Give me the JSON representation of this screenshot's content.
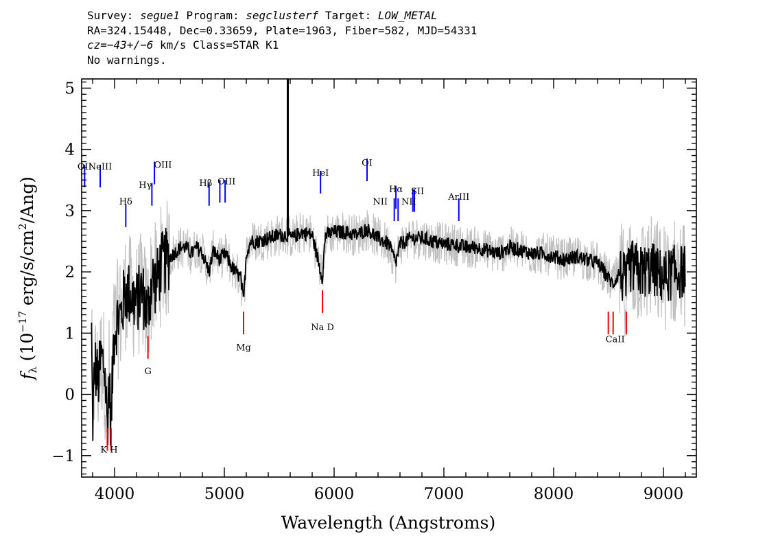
{
  "header": {
    "survey_label": "Survey:",
    "survey": "segue1",
    "program_label": "Program:",
    "program": "segclusterf",
    "target_label": "Target:",
    "target": "LOW_METAL",
    "line2": "RA=324.15448, Dec=0.33659, Plate=1963, Fiber=582, MJD=54331",
    "cz_label": "cz=",
    "cz_value": "−43+/−6",
    "cz_rest": " km/s Class=STAR K1",
    "line4": "No warnings."
  },
  "colors": {
    "flux": "#000000",
    "error": "#c0c0c0",
    "emission": "#0000ff",
    "absorption": "#ff0000"
  },
  "chart_data": {
    "type": "line",
    "xlabel": "Wavelength (Angstroms)",
    "ylabel": "fλ (10⁻¹⁷ erg/s/cm²/Ang)",
    "xlim": [
      3700,
      9300
    ],
    "ylim": [
      -1.35,
      5.15
    ],
    "x_ticks": [
      4000,
      5000,
      6000,
      7000,
      8000,
      9000
    ],
    "y_ticks": [
      -1,
      0,
      1,
      2,
      3,
      4,
      5
    ],
    "x_tick_labels": [
      "4000",
      "5000",
      "6000",
      "7000",
      "8000",
      "9000"
    ],
    "y_tick_labels": [
      "−1",
      "0",
      "1",
      "2",
      "3",
      "4",
      "5"
    ],
    "series": [
      {
        "role": "flux",
        "x": [
          3790,
          3800,
          3820,
          3850,
          3880,
          3910,
          3934,
          3950,
          3968,
          3990,
          4020,
          4060,
          4101,
          4150,
          4200,
          4250,
          4300,
          4340,
          4380,
          4420,
          4480,
          4540,
          4600,
          4650,
          4700,
          4750,
          4800,
          4861,
          4900,
          4960,
          5010,
          5060,
          5100,
          5150,
          5175,
          5200,
          5240,
          5300,
          5400,
          5500,
          5580,
          5620,
          5700,
          5800,
          5893,
          5920,
          6000,
          6100,
          6200,
          6300,
          6400,
          6500,
          6563,
          6600,
          6700,
          6800,
          6900,
          7000,
          7100,
          7200,
          7300,
          7400,
          7500,
          7600,
          7700,
          7800,
          7900,
          8000,
          8100,
          8200,
          8300,
          8400,
          8498,
          8542,
          8600,
          8662,
          8700,
          8800,
          8900,
          9000,
          9100,
          9200
        ],
        "y": [
          1.0,
          -0.5,
          0.5,
          0.2,
          0.6,
          0.4,
          -0.5,
          0.3,
          -0.6,
          0.9,
          1.2,
          1.3,
          1.7,
          1.6,
          1.5,
          1.7,
          1.3,
          1.9,
          1.8,
          2.1,
          2.2,
          2.3,
          2.4,
          2.4,
          2.3,
          2.4,
          2.3,
          2.0,
          2.35,
          2.2,
          2.3,
          2.1,
          2.0,
          1.9,
          1.5,
          2.3,
          2.5,
          2.5,
          2.55,
          2.6,
          2.6,
          2.55,
          2.65,
          2.6,
          1.9,
          2.6,
          2.65,
          2.65,
          2.6,
          2.7,
          2.55,
          2.45,
          2.15,
          2.45,
          2.55,
          2.55,
          2.5,
          2.45,
          2.45,
          2.4,
          2.4,
          2.35,
          2.3,
          2.4,
          2.35,
          2.3,
          2.3,
          2.25,
          2.2,
          2.25,
          2.2,
          2.15,
          1.9,
          1.8,
          2.0,
          1.8,
          2.1,
          2.0,
          2.05,
          1.9,
          2.0,
          2.0
        ]
      }
    ],
    "spike": {
      "x": 5578,
      "y": 5.15
    },
    "emission_lines": [
      {
        "label": "OII",
        "x": 3727,
        "y": 3.75
      },
      {
        "label": "NeIII",
        "x": 3869,
        "y": 3.75
      },
      {
        "label": "Hδ",
        "x": 4102,
        "y": 3.1
      },
      {
        "label": "Hγ",
        "x": 4340,
        "y": 3.45
      },
      {
        "label": "OIII",
        "x": 4363,
        "y": 3.8
      },
      {
        "label": "Hβ",
        "x": 4861,
        "y": 3.45
      },
      {
        "label": "OIII",
        "x": 4959,
        "y": 3.5
      },
      {
        "label": "OIII",
        "x": 5007,
        "y": 3.5
      },
      {
        "label": "HeI",
        "x": 5876,
        "y": 3.65
      },
      {
        "label": "OI",
        "x": 6300,
        "y": 3.85
      },
      {
        "label": "NII",
        "x": 6548,
        "y": 3.2
      },
      {
        "label": "Hα",
        "x": 6563,
        "y": 3.4
      },
      {
        "label": "NII",
        "x": 6583,
        "y": 3.2
      },
      {
        "label": "SII",
        "x": 6717,
        "y": 3.35
      },
      {
        "label": "SII",
        "x": 6731,
        "y": 3.35
      },
      {
        "label": "ArIII",
        "x": 7136,
        "y": 3.2
      }
    ],
    "absorption_lines": [
      {
        "label": "K",
        "x": 3934,
        "y": -0.55
      },
      {
        "label": "H",
        "x": 3968,
        "y": -0.55
      },
      {
        "label": "G",
        "x": 4304,
        "y": 0.95
      },
      {
        "label": "Mg",
        "x": 5175,
        "y": 1.35
      },
      {
        "label": "Na D",
        "x": 5894,
        "y": 1.7
      },
      {
        "label": "CaII",
        "x": 8498,
        "y": 1.35
      },
      {
        "label": "CaII",
        "x": 8542,
        "y": 1.35
      },
      {
        "label": "CaII",
        "x": 8662,
        "y": 1.35
      }
    ],
    "line_labels": [
      {
        "text": "OII",
        "x": 3727,
        "y": 3.67
      },
      {
        "text": "NeIII",
        "x": 3869,
        "y": 3.67
      },
      {
        "text": "Hδ",
        "x": 4102,
        "y": 3.1
      },
      {
        "text": "Hγ",
        "x": 4280,
        "y": 3.37
      },
      {
        "text": "OIII",
        "x": 4440,
        "y": 3.7
      },
      {
        "text": "Hβ",
        "x": 4830,
        "y": 3.4
      },
      {
        "text": "OIII",
        "x": 5020,
        "y": 3.43
      },
      {
        "text": "HeI",
        "x": 5876,
        "y": 3.57
      },
      {
        "text": "OI",
        "x": 6300,
        "y": 3.73
      },
      {
        "text": "NII",
        "x": 6420,
        "y": 3.1
      },
      {
        "text": "Hα",
        "x": 6563,
        "y": 3.3
      },
      {
        "text": "NII",
        "x": 6680,
        "y": 3.1
      },
      {
        "text": "SII",
        "x": 6760,
        "y": 3.27
      },
      {
        "text": "ArIII",
        "x": 7136,
        "y": 3.18
      },
      {
        "text": "K H",
        "x": 3950,
        "y": -0.95
      },
      {
        "text": "G",
        "x": 4304,
        "y": 0.33
      },
      {
        "text": "Mg",
        "x": 5175,
        "y": 0.72
      },
      {
        "text": "Na D",
        "x": 5894,
        "y": 1.05
      },
      {
        "text": "CaII",
        "x": 8560,
        "y": 0.85
      }
    ]
  }
}
